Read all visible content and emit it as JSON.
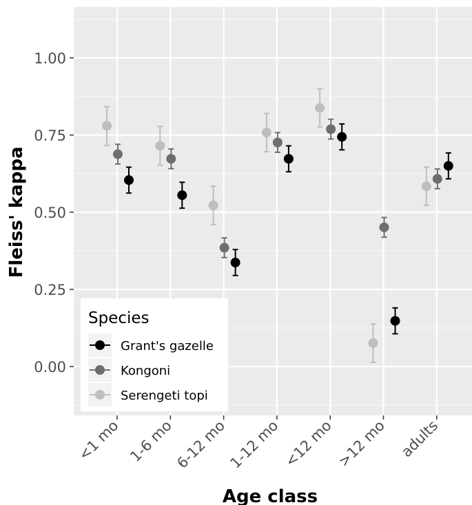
{
  "chart_data": {
    "type": "scatter",
    "xlabel": "Age class",
    "ylabel": "Fleiss' kappa",
    "ylim": [
      -0.15,
      1.13
    ],
    "yticks": [
      "0.00",
      "0.25",
      "0.50",
      "0.75",
      "1.00"
    ],
    "ytick_values": [
      0,
      0.25,
      0.5,
      0.75,
      1.0
    ],
    "categories": [
      "<1 mo",
      "1-6 mo",
      "6-12 mo",
      "1-12 mo",
      "<12 mo",
      ">12 mo",
      "adults"
    ],
    "grid": true,
    "legend": {
      "title": "Species",
      "position": "bottom-left"
    },
    "series": [
      {
        "name": "Serengeti topi",
        "color": "#bebebe",
        "values": [
          0.78,
          0.715,
          0.522,
          0.758,
          0.838,
          0.076,
          0.584
        ],
        "lower": [
          0.716,
          0.652,
          0.46,
          0.696,
          0.776,
          0.014,
          0.522
        ],
        "upper": [
          0.842,
          0.778,
          0.584,
          0.82,
          0.9,
          0.138,
          0.646
        ]
      },
      {
        "name": "Kongoni",
        "color": "#6e6e6e",
        "values": [
          0.688,
          0.673,
          0.385,
          0.726,
          0.769,
          0.451,
          0.608
        ],
        "lower": [
          0.656,
          0.641,
          0.353,
          0.694,
          0.737,
          0.419,
          0.576
        ],
        "upper": [
          0.72,
          0.705,
          0.417,
          0.758,
          0.801,
          0.483,
          0.64
        ]
      },
      {
        "name": "Grant's gazelle",
        "color": "#000000",
        "values": [
          0.604,
          0.555,
          0.337,
          0.673,
          0.744,
          0.148,
          0.65
        ],
        "lower": [
          0.562,
          0.513,
          0.295,
          0.631,
          0.702,
          0.106,
          0.608
        ],
        "upper": [
          0.646,
          0.597,
          0.379,
          0.715,
          0.786,
          0.19,
          0.692
        ]
      }
    ],
    "legend_order": [
      "Grant's gazelle",
      "Kongoni",
      "Serengeti topi"
    ]
  }
}
